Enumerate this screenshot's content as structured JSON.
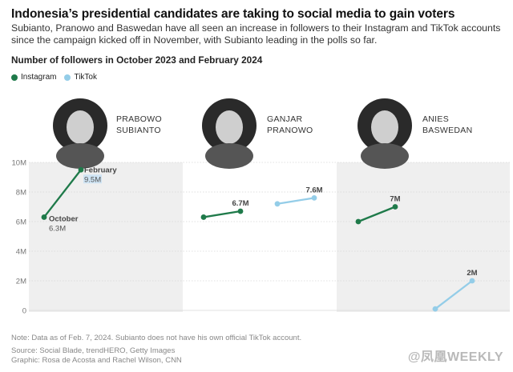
{
  "title": "Indonesia’s presidential candidates are taking to social media to gain voters",
  "subtitle": "Subianto, Pranowo and Baswedan have all seen an increase in followers to their Instagram and TikTok accounts since the campaign kicked off in November, with Subianto leading in the polls so far.",
  "chart_heading": "Number of followers in October 2023 and February 2024",
  "legend": {
    "instagram": "Instagram",
    "tiktok": "TikTok"
  },
  "note": "Note: Data as of Feb. 7, 2024. Subianto does not have his own official TikTok account.",
  "source": "Source: Social Blade, trendHERO, Getty Images",
  "graphic": "Graphic: Rosa de Acosta and Rachel Wilson, CNN",
  "watermark": "@凤凰WEEKLY",
  "colors": {
    "instagram": "#1f7a4a",
    "tiktok": "#94cde8",
    "panel": "#efefef"
  },
  "chart_data": {
    "type": "line",
    "x": [
      "October 2023",
      "February 2024"
    ],
    "ylim": [
      0,
      10
    ],
    "yticks": [
      0,
      2,
      4,
      6,
      8,
      10
    ],
    "ytick_labels": [
      "0",
      "2M",
      "4M",
      "6M",
      "8M",
      "10M"
    ],
    "candidates": [
      {
        "name_line1": "PRABOWO",
        "name_line2": "SUBIANTO",
        "instagram": [
          6.3,
          9.5
        ],
        "tiktok": null,
        "start_label": "October",
        "start_value_label": "6.3M",
        "end_label": "February",
        "end_value_label": "9.5M"
      },
      {
        "name_line1": "GANJAR",
        "name_line2": "PRANOWO",
        "instagram": [
          6.3,
          6.7
        ],
        "tiktok": [
          7.2,
          7.6
        ],
        "instagram_end_label": "6.7M",
        "tiktok_end_label": "7.6M"
      },
      {
        "name_line1": "ANIES",
        "name_line2": "BASWEDAN",
        "instagram": [
          6.0,
          7.0
        ],
        "tiktok": [
          0.1,
          2.0
        ],
        "instagram_end_label": "7M",
        "tiktok_end_label": "2M"
      }
    ]
  }
}
